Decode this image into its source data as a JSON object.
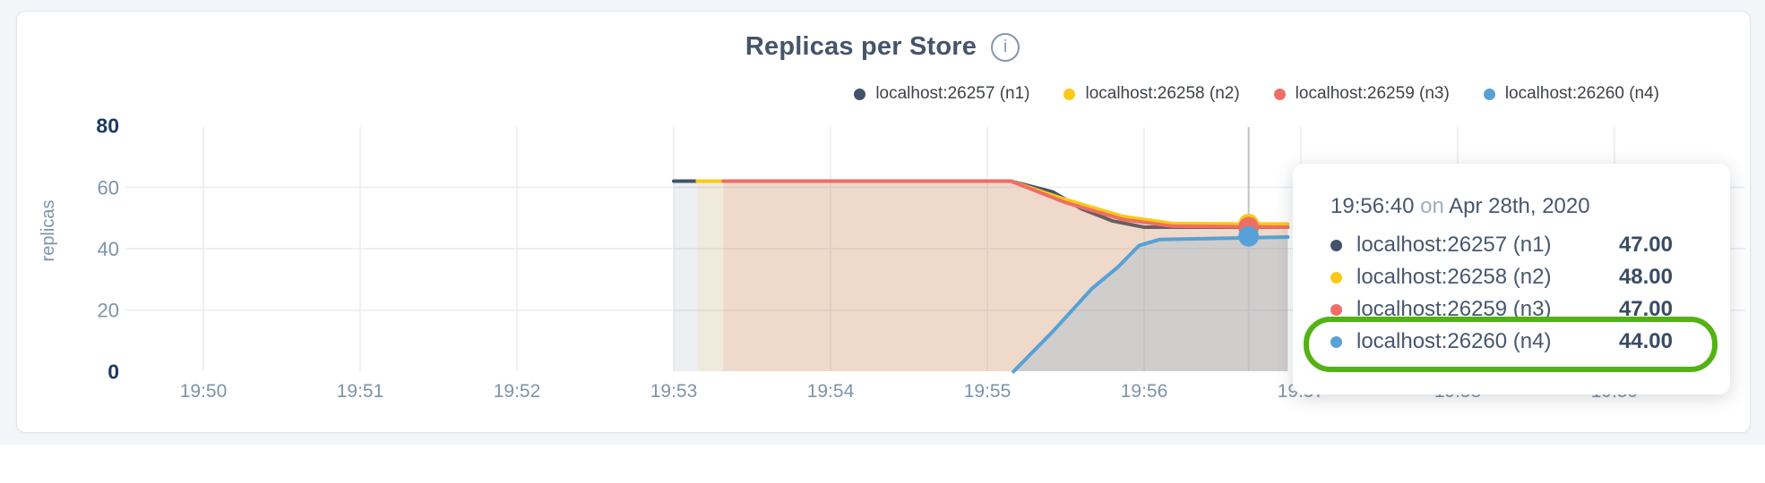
{
  "header": {
    "title": "Replicas per Store",
    "info_icon": "i"
  },
  "legend": {
    "items": [
      {
        "label": "localhost:26257 (n1)",
        "color": "#42526a"
      },
      {
        "label": "localhost:26258 (n2)",
        "color": "#fbc916"
      },
      {
        "label": "localhost:26259 (n3)",
        "color": "#ee6e65"
      },
      {
        "label": "localhost:26260 (n4)",
        "color": "#57a1d6"
      }
    ]
  },
  "chart_data": {
    "type": "area",
    "title": "Replicas per Store",
    "ylabel": "replicas",
    "ylim": [
      0,
      80
    ],
    "grid": true,
    "x_ticks": [
      "19:50",
      "19:51",
      "19:52",
      "19:53",
      "19:54",
      "19:55",
      "19:56",
      "19:57",
      "19:58",
      "19:59"
    ],
    "x_tick_interval_seconds": 60,
    "y_ticks": [
      {
        "label": "80",
        "value": 80,
        "emphasis": true,
        "grid": false
      },
      {
        "label": "60",
        "value": 60,
        "emphasis": false,
        "grid": true
      },
      {
        "label": "40",
        "value": 40,
        "emphasis": false,
        "grid": true
      },
      {
        "label": "20",
        "value": 20,
        "emphasis": false,
        "grid": true
      },
      {
        "label": "0",
        "value": 0,
        "emphasis": true,
        "grid": false
      }
    ],
    "series": [
      {
        "name": "localhost:26257 (n1)",
        "color": "#42526a",
        "fill_opacity": 0.09,
        "points": [
          [
            180,
            62
          ],
          [
            309,
            62
          ],
          [
            325,
            58.5
          ],
          [
            336,
            53
          ],
          [
            348,
            49
          ],
          [
            360,
            47
          ],
          [
            415,
            47
          ]
        ]
      },
      {
        "name": "localhost:26258 (n2)",
        "color": "#fbc916",
        "fill_opacity": 0.1,
        "points": [
          [
            189,
            62
          ],
          [
            309,
            62
          ],
          [
            330,
            56
          ],
          [
            352,
            50.5
          ],
          [
            371,
            48.2
          ],
          [
            415,
            48
          ]
        ]
      },
      {
        "name": "localhost:26259 (n3)",
        "color": "#ee6e65",
        "fill_opacity": 0.13,
        "points": [
          [
            199,
            62
          ],
          [
            309,
            62
          ],
          [
            330,
            55
          ],
          [
            352,
            49.5
          ],
          [
            371,
            47.3
          ],
          [
            415,
            47
          ]
        ]
      },
      {
        "name": "localhost:26260 (n4)",
        "color": "#57a1d6",
        "fill_opacity": 0.2,
        "points": [
          [
            310,
            0
          ],
          [
            325,
            13
          ],
          [
            340,
            27
          ],
          [
            350,
            34
          ],
          [
            358,
            41
          ],
          [
            366,
            43
          ],
          [
            415,
            43.8
          ]
        ]
      }
    ],
    "hover": {
      "time": "19:56:40",
      "time_seconds": 400,
      "values": [
        47,
        48,
        47,
        44
      ]
    }
  },
  "tooltip": {
    "time": "19:56:40",
    "separator": "on",
    "date": "Apr 28th, 2020",
    "rows": [
      {
        "label": "localhost:26257 (n1)",
        "value": "47.00",
        "color": "#42526a"
      },
      {
        "label": "localhost:26258 (n2)",
        "value": "48.00",
        "color": "#fbc916"
      },
      {
        "label": "localhost:26259 (n3)",
        "value": "47.00",
        "color": "#ee6e65"
      },
      {
        "label": "localhost:26260 (n4)",
        "value": "44.00",
        "color": "#57a1d6"
      }
    ],
    "highlighted_row": 3,
    "highlight_color": "#54b215"
  }
}
